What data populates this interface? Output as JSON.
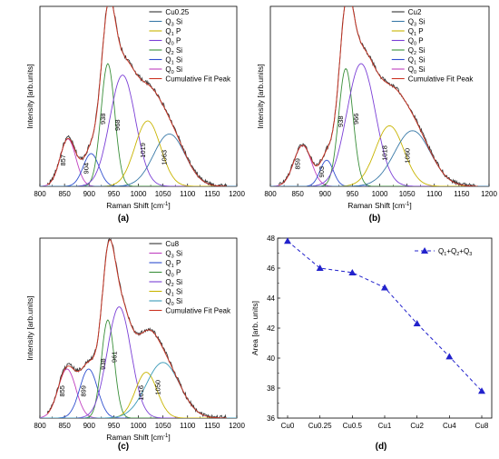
{
  "chart_data": [
    {
      "type": "line",
      "subplot_label": "(a)",
      "xlabel": "Raman Shift [cm",
      "xlabel_sup": "-1",
      "xlabel_end": "]",
      "ylabel": "Intensity [arb.units]",
      "xlim": [
        800,
        1200
      ],
      "xticks": [
        800,
        850,
        900,
        950,
        1000,
        1050,
        1100,
        1150,
        1200
      ],
      "legend_position": "top-right",
      "legend": [
        {
          "label": "Cu0.25",
          "sub": "",
          "suffix": "",
          "color": "#333333"
        },
        {
          "label": "Q",
          "sub": "3",
          "suffix": " Si",
          "color": "#3a7aa8"
        },
        {
          "label": "Q",
          "sub": "1",
          "suffix": " P",
          "color": "#c8b400"
        },
        {
          "label": "Q",
          "sub": "0",
          "suffix": " P",
          "color": "#7b3fd6"
        },
        {
          "label": "Q",
          "sub": "2",
          "suffix": " Si",
          "color": "#3a8f3a"
        },
        {
          "label": "Q",
          "sub": "1",
          "suffix": " Si",
          "color": "#2f4fcf"
        },
        {
          "label": "Q",
          "sub": "0",
          "suffix": " Si",
          "color": "#c040c0"
        },
        {
          "label": "Cumulative Fit Peak",
          "sub": "",
          "suffix": "",
          "color": "#cc3322"
        }
      ],
      "peaks": [
        {
          "center": 857,
          "amp": 0.29,
          "sigma": 16,
          "color": "#c040c0",
          "label": "857"
        },
        {
          "center": 904,
          "amp": 0.2,
          "sigma": 16,
          "color": "#2f4fcf",
          "label": "904"
        },
        {
          "center": 938,
          "amp": 0.75,
          "sigma": 14,
          "color": "#3a8f3a",
          "label": "938"
        },
        {
          "center": 968,
          "amp": 0.68,
          "sigma": 26,
          "color": "#7b3fd6",
          "label": "968"
        },
        {
          "center": 1019,
          "amp": 0.4,
          "sigma": 26,
          "color": "#c8b400",
          "label": "1019"
        },
        {
          "center": 1063,
          "amp": 0.32,
          "sigma": 32,
          "color": "#3a7aa8",
          "label": "1063"
        }
      ]
    },
    {
      "type": "line",
      "subplot_label": "(b)",
      "xlabel": "Raman Shift [cm",
      "xlabel_sup": "-1",
      "xlabel_end": "]",
      "ylabel": "Intensity [arb.units]",
      "xlim": [
        800,
        1200
      ],
      "xticks": [
        800,
        850,
        900,
        950,
        1000,
        1050,
        1100,
        1150,
        1200
      ],
      "legend_position": "top-right",
      "legend": [
        {
          "label": "Cu2",
          "sub": "",
          "suffix": "",
          "color": "#333333"
        },
        {
          "label": "Q",
          "sub": "3",
          "suffix": " Si",
          "color": "#3a7aa8"
        },
        {
          "label": "Q",
          "sub": "1",
          "suffix": " P",
          "color": "#c8b400"
        },
        {
          "label": "Q",
          "sub": "0",
          "suffix": " P",
          "color": "#7b3fd6"
        },
        {
          "label": "Q",
          "sub": "2",
          "suffix": " Si",
          "color": "#3a8f3a"
        },
        {
          "label": "Q",
          "sub": "1",
          "suffix": " Si",
          "color": "#2f4fcf"
        },
        {
          "label": "Q",
          "sub": "0",
          "suffix": " Si",
          "color": "#c040c0"
        },
        {
          "label": "Cumulative Fit Peak",
          "sub": "",
          "suffix": "",
          "color": "#cc3322"
        }
      ],
      "peaks": [
        {
          "center": 859,
          "amp": 0.25,
          "sigma": 16,
          "color": "#c040c0",
          "label": "859"
        },
        {
          "center": 903,
          "amp": 0.16,
          "sigma": 12,
          "color": "#2f4fcf",
          "label": "903"
        },
        {
          "center": 938,
          "amp": 0.72,
          "sigma": 13,
          "color": "#3a8f3a",
          "label": "938"
        },
        {
          "center": 966,
          "amp": 0.75,
          "sigma": 26,
          "color": "#7b3fd6",
          "label": "966"
        },
        {
          "center": 1018,
          "amp": 0.37,
          "sigma": 26,
          "color": "#c8b400",
          "label": "1018"
        },
        {
          "center": 1060,
          "amp": 0.34,
          "sigma": 33,
          "color": "#3a7aa8",
          "label": "1060"
        }
      ]
    },
    {
      "type": "line",
      "subplot_label": "(c)",
      "xlabel": "Raman Shift [cm",
      "xlabel_sup": "-1",
      "xlabel_end": "]",
      "ylabel": "Intensity [arb.units]",
      "xlim": [
        800,
        1200
      ],
      "xticks": [
        800,
        850,
        900,
        950,
        1000,
        1050,
        1100,
        1150,
        1200
      ],
      "legend_position": "top-right",
      "legend": [
        {
          "label": "Cu8",
          "sub": "",
          "suffix": "",
          "color": "#333333"
        },
        {
          "label": "Q",
          "sub": "3",
          "suffix": " Si",
          "color": "#c040c0"
        },
        {
          "label": "Q",
          "sub": "1",
          "suffix": " P",
          "color": "#2f4fcf"
        },
        {
          "label": "Q",
          "sub": "0",
          "suffix": " P",
          "color": "#3a8f3a"
        },
        {
          "label": "Q",
          "sub": "2",
          "suffix": " Si",
          "color": "#7b3fd6"
        },
        {
          "label": "Q",
          "sub": "1",
          "suffix": " Si",
          "color": "#c8b400"
        },
        {
          "label": "Q",
          "sub": "0",
          "suffix": " Si",
          "color": "#3a9ab8"
        },
        {
          "label": "Cumulative Fit Peak",
          "sub": "",
          "suffix": "",
          "color": "#cc3322"
        }
      ],
      "peaks": [
        {
          "center": 855,
          "amp": 0.3,
          "sigma": 18,
          "color": "#c040c0",
          "label": "855"
        },
        {
          "center": 899,
          "amp": 0.3,
          "sigma": 18,
          "color": "#2f4fcf",
          "label": "899"
        },
        {
          "center": 938,
          "amp": 0.6,
          "sigma": 13,
          "color": "#3a8f3a",
          "label": "938"
        },
        {
          "center": 961,
          "amp": 0.68,
          "sigma": 24,
          "color": "#7b3fd6",
          "label": "961"
        },
        {
          "center": 1016,
          "amp": 0.28,
          "sigma": 22,
          "color": "#c8b400",
          "label": "1016"
        },
        {
          "center": 1050,
          "amp": 0.34,
          "sigma": 34,
          "color": "#3a9ab8",
          "label": "1050"
        }
      ]
    },
    {
      "type": "line",
      "subplot_label": "(d)",
      "ylabel": "Area [arb. units]",
      "xlabel": "",
      "categories": [
        "Cu0",
        "Cu0.25",
        "Cu0.5",
        "Cu1",
        "Cu2",
        "Cu4",
        "Cu8"
      ],
      "ylim": [
        36,
        48
      ],
      "yticks": [
        36,
        38,
        40,
        42,
        44,
        46,
        48
      ],
      "legend_position": "top-right",
      "series": [
        {
          "legend_parts": [
            {
              "t": "Q",
              "sub": "1"
            },
            {
              "t": "+Q",
              "sub": "2"
            },
            {
              "t": "+Q",
              "sub": "3"
            }
          ],
          "color": "#2222cc",
          "marker": "triangle",
          "line_style": "dashed",
          "values": [
            47.8,
            46.0,
            45.7,
            44.7,
            42.3,
            40.1,
            37.8
          ]
        }
      ]
    }
  ]
}
